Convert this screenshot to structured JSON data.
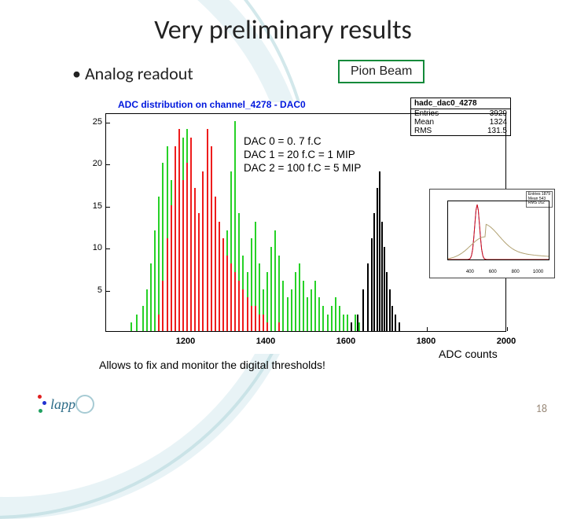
{
  "title": "Very preliminary results",
  "bullet_text": "Analog readout",
  "badge_text": "Pion Beam",
  "badge_border_color": "#138a3a",
  "page_number": "18",
  "logo_text": "lapp",
  "adc_label": "ADC counts",
  "caption_text": "Allows to fix and monitor the digital thresholds!",
  "dac_lines": [
    "DAC 0 =    0. 7 f.C",
    "DAC 1 =   20 f.C = 1 MIP",
    "DAC 2 = 100 f.C = 5 MIP"
  ],
  "chart": {
    "type": "histogram",
    "title_text": "ADC distribution on channel_4278 - DAC0",
    "title_color": "#0018dd",
    "stats_header": "hadc_dac0_4278",
    "entries_label": "Entries",
    "entries_value": "3929",
    "mean_label": "Mean",
    "mean_value": "1324",
    "rms_label": "RMS",
    "rms_value": "131.5",
    "xlim": [
      1000,
      2000
    ],
    "xticks": [
      1200,
      1400,
      1600,
      1800,
      2000
    ],
    "ylim": [
      0,
      26
    ],
    "yticks": [
      5,
      10,
      15,
      20,
      25
    ],
    "background_color": "#ffffff",
    "border_color": "#000000",
    "series": {
      "green": {
        "color": "#27d127",
        "bins": [
          [
            1060,
            1
          ],
          [
            1075,
            2
          ],
          [
            1090,
            3
          ],
          [
            1100,
            5
          ],
          [
            1110,
            8
          ],
          [
            1120,
            12
          ],
          [
            1130,
            16
          ],
          [
            1140,
            20
          ],
          [
            1150,
            22
          ],
          [
            1160,
            18
          ],
          [
            1170,
            15
          ],
          [
            1180,
            21
          ],
          [
            1190,
            23
          ],
          [
            1200,
            24
          ],
          [
            1210,
            20
          ],
          [
            1220,
            17
          ],
          [
            1230,
            14
          ],
          [
            1240,
            11
          ],
          [
            1250,
            18
          ],
          [
            1260,
            22
          ],
          [
            1270,
            16
          ],
          [
            1280,
            13
          ],
          [
            1290,
            10
          ],
          [
            1300,
            12
          ],
          [
            1310,
            19
          ],
          [
            1320,
            25
          ],
          [
            1330,
            14
          ],
          [
            1340,
            9
          ],
          [
            1350,
            7
          ],
          [
            1360,
            11
          ],
          [
            1370,
            13
          ],
          [
            1380,
            8
          ],
          [
            1390,
            5
          ],
          [
            1400,
            7
          ],
          [
            1410,
            10
          ],
          [
            1420,
            12
          ],
          [
            1430,
            9
          ],
          [
            1440,
            6
          ],
          [
            1450,
            4
          ],
          [
            1460,
            5
          ],
          [
            1470,
            7
          ],
          [
            1480,
            8
          ],
          [
            1490,
            6
          ],
          [
            1500,
            4
          ],
          [
            1510,
            5
          ],
          [
            1520,
            6
          ],
          [
            1530,
            4
          ],
          [
            1540,
            3
          ],
          [
            1550,
            2
          ],
          [
            1560,
            3
          ],
          [
            1570,
            4
          ],
          [
            1580,
            3
          ],
          [
            1590,
            2
          ],
          [
            1600,
            2
          ],
          [
            1610,
            1
          ],
          [
            1620,
            2
          ],
          [
            1630,
            1
          ],
          [
            1650,
            1
          ],
          [
            1680,
            0
          ]
        ]
      },
      "red": {
        "color": "#ee1c1c",
        "bins": [
          [
            1130,
            2
          ],
          [
            1140,
            6
          ],
          [
            1150,
            11
          ],
          [
            1160,
            15
          ],
          [
            1170,
            22
          ],
          [
            1180,
            24
          ],
          [
            1190,
            18
          ],
          [
            1200,
            20
          ],
          [
            1210,
            23
          ],
          [
            1220,
            17
          ],
          [
            1230,
            14
          ],
          [
            1240,
            19
          ],
          [
            1250,
            24
          ],
          [
            1260,
            22
          ],
          [
            1270,
            16
          ],
          [
            1280,
            13
          ],
          [
            1290,
            11
          ],
          [
            1300,
            9
          ],
          [
            1310,
            8
          ],
          [
            1320,
            7
          ],
          [
            1330,
            6
          ],
          [
            1340,
            5
          ],
          [
            1350,
            4
          ],
          [
            1360,
            3
          ],
          [
            1370,
            3
          ],
          [
            1380,
            2
          ],
          [
            1390,
            2
          ],
          [
            1400,
            1
          ],
          [
            1430,
            1
          ]
        ]
      },
      "black": {
        "color": "#000000",
        "bins": [
          [
            1610,
            1
          ],
          [
            1625,
            2
          ],
          [
            1640,
            5
          ],
          [
            1650,
            8
          ],
          [
            1660,
            11
          ],
          [
            1667,
            14
          ],
          [
            1674,
            17
          ],
          [
            1680,
            19
          ],
          [
            1686,
            13
          ],
          [
            1692,
            10
          ],
          [
            1698,
            7
          ],
          [
            1705,
            5
          ],
          [
            1712,
            3
          ],
          [
            1720,
            2
          ],
          [
            1730,
            1
          ]
        ]
      }
    }
  },
  "inset": {
    "type": "line",
    "xmin": 200,
    "xmax": 1100,
    "xticks": [
      400,
      600,
      800,
      1000
    ],
    "ylim": [
      0,
      180
    ],
    "peak_x": 460,
    "series": {
      "blue": "#0030e0",
      "red": "#e01010",
      "tan": "#b0a070"
    },
    "stats_lines": [
      "Entries 1879",
      "Mean 543",
      "RMS 162"
    ]
  }
}
